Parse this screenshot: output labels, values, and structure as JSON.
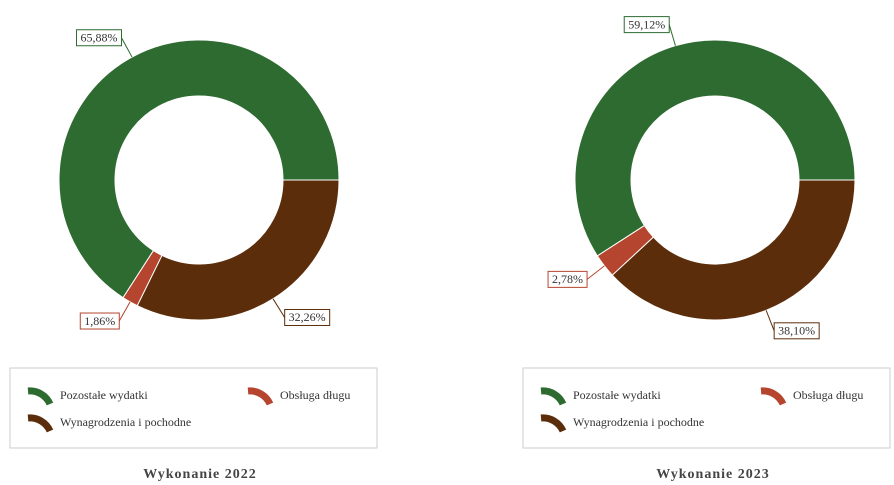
{
  "chart_data": [
    {
      "type": "donut",
      "title": "Wykonanie 2022",
      "categories": [
        "Pozostałe wydatki",
        "Obsługa długu",
        "Wynagrodzenia i pochodne"
      ],
      "values": [
        65.88,
        1.86,
        32.26
      ],
      "value_labels": [
        "65,88%",
        "1,86%",
        "32,26%"
      ],
      "colors": [
        "#2e6b30",
        "#b5452e",
        "#5c2d0a"
      ]
    },
    {
      "type": "donut",
      "title": "Wykonanie 2023",
      "categories": [
        "Pozostałe wydatki",
        "Obsługa długu",
        "Wynagrodzenia i pochodne"
      ],
      "values": [
        59.12,
        2.78,
        38.1
      ],
      "value_labels": [
        "59,12%",
        "2,78%",
        "38,10%"
      ],
      "colors": [
        "#2e6b30",
        "#b5452e",
        "#5c2d0a"
      ]
    }
  ]
}
